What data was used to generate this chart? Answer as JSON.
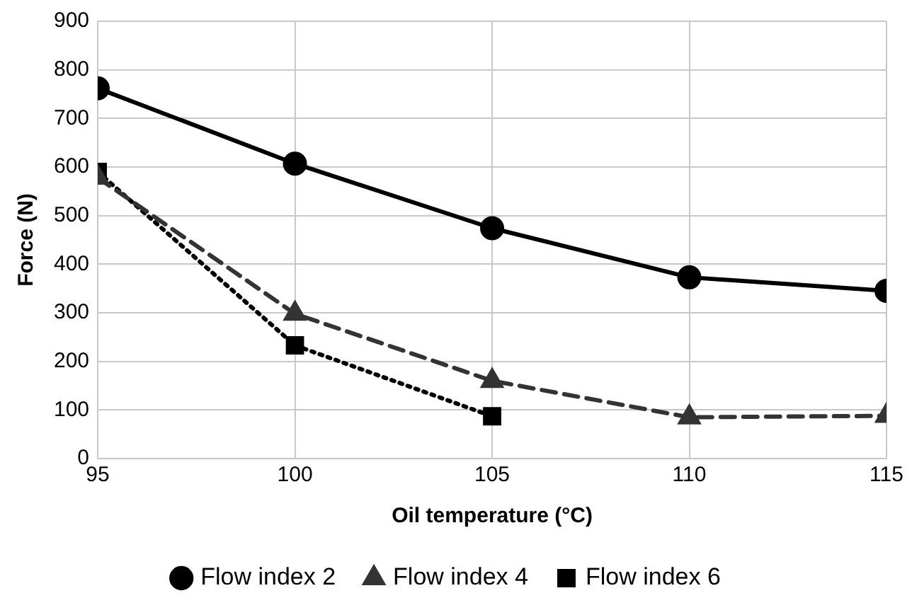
{
  "chart_data": {
    "type": "line",
    "xlabel": "Oil temperature (°C)",
    "ylabel": "Force (N)",
    "x": [
      95,
      100,
      105,
      110,
      115
    ],
    "series": [
      {
        "name": "Flow index 2",
        "color": "#000000",
        "marker": "circle",
        "line_style": "solid",
        "values": [
          762,
          607,
          474,
          373,
          345
        ]
      },
      {
        "name": "Flow index 4",
        "color": "#333333",
        "marker": "triangle",
        "line_style": "dashed",
        "values": [
          578,
          298,
          160,
          85,
          88
        ]
      },
      {
        "name": "Flow index 6",
        "color": "#000000",
        "marker": "square",
        "line_style": "dotted",
        "values": [
          590,
          233,
          87,
          null,
          null
        ]
      }
    ],
    "xlim": [
      95,
      115
    ],
    "xticks": [
      95,
      100,
      105,
      110,
      115
    ],
    "ylim": [
      0,
      900
    ],
    "yticks": [
      0,
      100,
      200,
      300,
      400,
      500,
      600,
      700,
      800,
      900
    ],
    "grid": true,
    "legend": "bottom"
  }
}
